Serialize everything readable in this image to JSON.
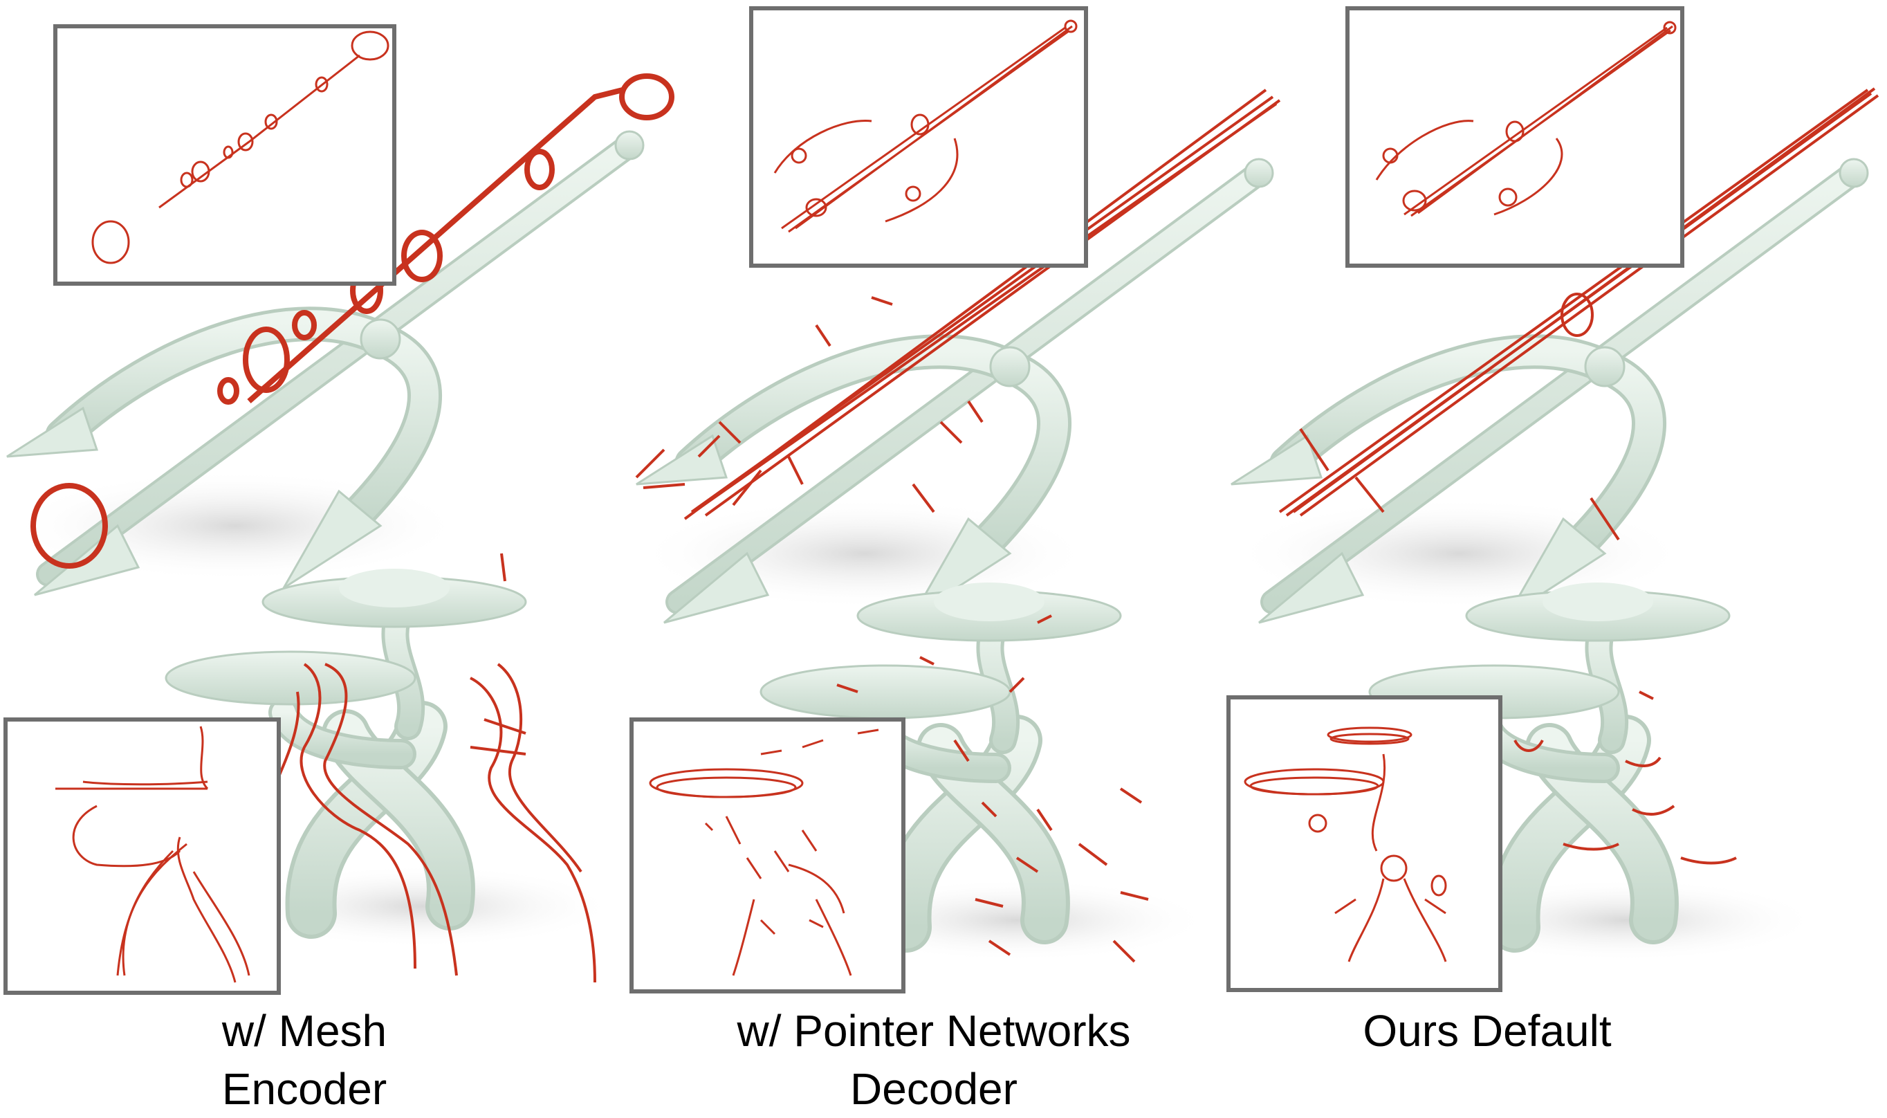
{
  "figure": {
    "columns": [
      {
        "id": "mesh-encoder",
        "caption_lines": [
          "w/ Mesh",
          "Encoder"
        ]
      },
      {
        "id": "pointer-networks",
        "caption_lines": [
          "w/ Pointer Networks",
          "Decoder"
        ]
      },
      {
        "id": "ours-default",
        "caption_lines": [
          "Ours Default"
        ]
      }
    ],
    "objects": [
      "trident",
      "mushroom-creature"
    ],
    "colors": {
      "mesh_fill": "#dbe9df",
      "mesh_shade": "#b9cdbf",
      "stroke_red": "#c8321e",
      "inset_border": "#6e6e6e",
      "shadow": "#e6e6e6"
    }
  }
}
